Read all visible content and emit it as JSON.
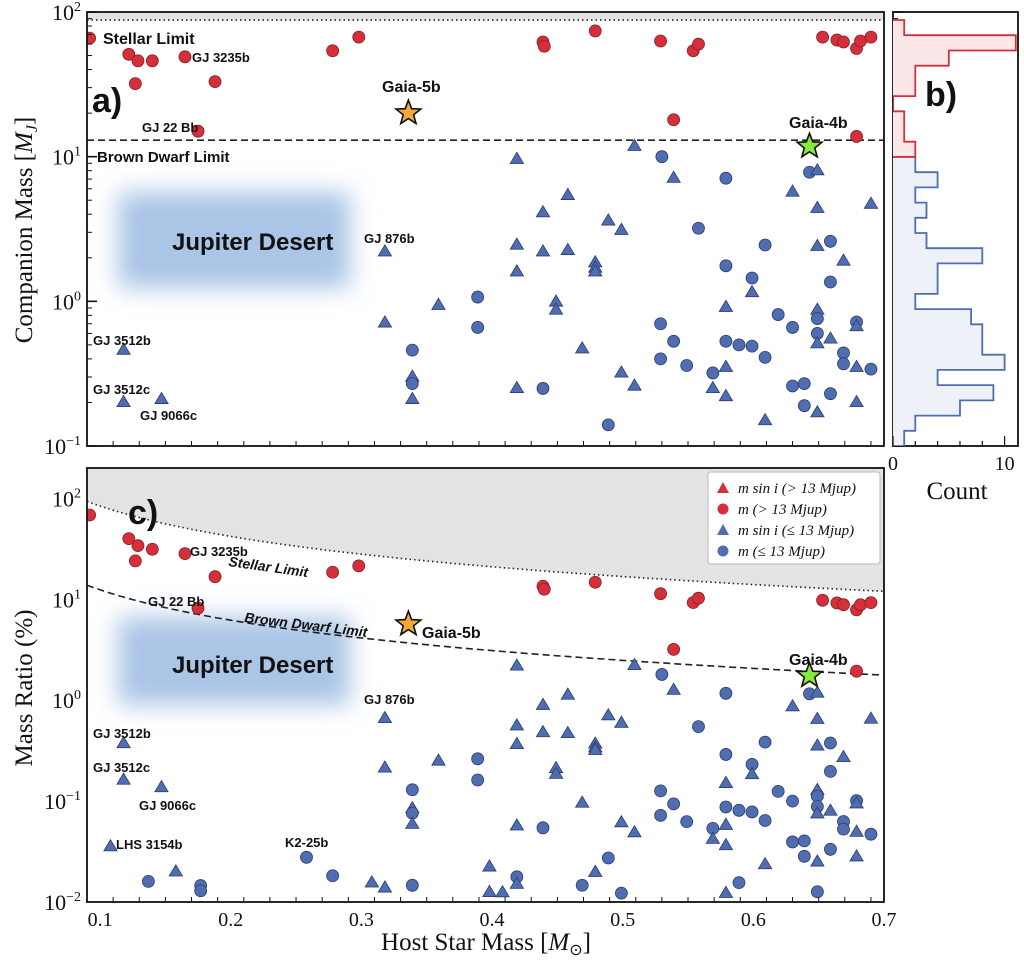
{
  "chart_data": [
    {
      "panel": "a)",
      "type": "scatter",
      "xlabel": "Host Star Mass [M☉]",
      "ylabel": "Companion Mass [MJ]",
      "xlim": [
        0.09,
        0.7
      ],
      "ylim": [
        0.1,
        100
      ],
      "yscale": "log",
      "x_ticks": [
        "0.1",
        "0.2",
        "0.3",
        "0.4",
        "0.5",
        "0.6",
        "0.7"
      ],
      "y_ticks": [
        "10^-1",
        "10^0",
        "10^1",
        "10^2"
      ],
      "limits": [
        {
          "label": "Stellar Limit",
          "mass": 88,
          "style": "dotted"
        },
        {
          "label": "Brown Dwarf Limit",
          "mass": 13,
          "style": "dashed"
        }
      ],
      "region_label": "Jupiter Desert",
      "annotations": [
        "Stellar Limit",
        "GJ 3235b",
        "Gaia-5b",
        "GJ 22 Bb",
        "Brown Dwarf Limit",
        "Gaia-4b",
        "Jupiter Desert",
        "GJ 876b",
        "GJ 3512b",
        "GJ 3512c",
        "GJ 9066c"
      ]
    },
    {
      "panel": "b)",
      "type": "histogram",
      "xlabel": "Count",
      "x_ticks": [
        "0",
        "10"
      ],
      "xlim": [
        0,
        11.2
      ],
      "mass_range": [
        0.1,
        88
      ],
      "counts_low_mass": [
        1,
        2,
        6,
        9,
        4,
        10,
        8,
        8,
        7,
        2,
        4,
        4,
        8,
        3,
        2,
        3,
        2,
        4,
        2
      ],
      "counts_high_mass": [
        2,
        1,
        1,
        0,
        2,
        2,
        5,
        11,
        1
      ]
    },
    {
      "panel": "c)",
      "type": "scatter",
      "xlabel": "Host Star Mass [M☉]",
      "ylabel": "Mass Ratio (%)",
      "xlim": [
        0.09,
        0.7
      ],
      "ylim": [
        0.01,
        200
      ],
      "yscale": "log",
      "x_ticks": [
        "0.1",
        "0.2",
        "0.3",
        "0.4",
        "0.5",
        "0.6",
        "0.7"
      ],
      "y_ticks": [
        "10^-2",
        "10^-1",
        "10^0",
        "10^1",
        "10^2"
      ],
      "annotations": [
        "Stellar Limit",
        "GJ 3235b",
        "GJ 22 Bb",
        "Brown Dwarf Limit",
        "Gaia-5b",
        "Jupiter Desert",
        "Gaia-4b",
        "GJ 876b",
        "GJ 3512b",
        "GJ 3512c",
        "GJ 9066c",
        "LHS 3154b",
        "K2-25b"
      ]
    }
  ],
  "legend": {
    "placement": "top-right",
    "entries": [
      {
        "symbol": "triangle",
        "color": "#d3303c",
        "label": "m sin i (> 13 Mjup)"
      },
      {
        "symbol": "circle",
        "color": "#d3303c",
        "label": "m (> 13 Mjup)"
      },
      {
        "symbol": "triangle",
        "color": "#4f6db0",
        "label": "m sin i (≤ 13 Mjup)"
      },
      {
        "symbol": "circle",
        "color": "#4f6db0",
        "label": "m (≤ 13 Mjup)"
      }
    ]
  },
  "colors": {
    "high_mass": "#d3303c",
    "low_mass": "#4f6db0",
    "gaia5b": "#f5a83a",
    "gaia4b": "#84ea3c",
    "desert": "#aac5e6"
  },
  "highlights": [
    {
      "name": "Gaia-5b",
      "host_mass": 0.336,
      "mass": 20
    },
    {
      "name": "Gaia-4b",
      "host_mass": 0.643,
      "mass": 11.8
    }
  ],
  "points_note_columns": [
    "host_mass_Msun",
    "companion_mass_MJ",
    "measurement"
  ],
  "points": [
    [
      0.092,
      66,
      "m"
    ],
    [
      0.122,
      51,
      "m"
    ],
    [
      0.129,
      46,
      "m"
    ],
    [
      0.14,
      46,
      "m"
    ],
    [
      0.127,
      32,
      "m"
    ],
    [
      0.165,
      49,
      "m"
    ],
    [
      0.188,
      33,
      "m"
    ],
    [
      0.175,
      15,
      "m"
    ],
    [
      0.278,
      54,
      "m"
    ],
    [
      0.298,
      67,
      "m"
    ],
    [
      0.439,
      62,
      "m"
    ],
    [
      0.44,
      58,
      "m"
    ],
    [
      0.479,
      74,
      "m"
    ],
    [
      0.529,
      63,
      "m"
    ],
    [
      0.554,
      54,
      "m"
    ],
    [
      0.558,
      60,
      "m"
    ],
    [
      0.539,
      18,
      "m"
    ],
    [
      0.653,
      67,
      "m"
    ],
    [
      0.664,
      64,
      "m"
    ],
    [
      0.669,
      62,
      "m"
    ],
    [
      0.679,
      56,
      "m"
    ],
    [
      0.682,
      63,
      "m"
    ],
    [
      0.69,
      67,
      "m"
    ],
    [
      0.679,
      13.8,
      "m"
    ],
    [
      0.318,
      2.2,
      "msini"
    ],
    [
      0.318,
      0.71,
      "msini"
    ],
    [
      0.359,
      0.94,
      "msini"
    ],
    [
      0.389,
      1.07,
      "m"
    ],
    [
      0.389,
      0.66,
      "m"
    ],
    [
      0.339,
      0.46,
      "m"
    ],
    [
      0.339,
      0.3,
      "msini"
    ],
    [
      0.339,
      0.27,
      "m"
    ],
    [
      0.339,
      0.21,
      "msini"
    ],
    [
      0.118,
      0.46,
      "msini"
    ],
    [
      0.118,
      0.2,
      "msini"
    ],
    [
      0.147,
      0.21,
      "msini"
    ],
    [
      0.419,
      9.6,
      "msini"
    ],
    [
      0.509,
      11.8,
      "msini"
    ],
    [
      0.53,
      10,
      "m"
    ],
    [
      0.539,
      7.1,
      "msini"
    ],
    [
      0.579,
      7.1,
      "m"
    ],
    [
      0.643,
      7.8,
      "m"
    ],
    [
      0.649,
      8,
      "msini"
    ],
    [
      0.63,
      5.7,
      "msini"
    ],
    [
      0.649,
      4.4,
      "msini"
    ],
    [
      0.69,
      4.7,
      "msini"
    ],
    [
      0.458,
      5.4,
      "msini"
    ],
    [
      0.439,
      4.1,
      "msini"
    ],
    [
      0.489,
      3.6,
      "msini"
    ],
    [
      0.499,
      3.1,
      "msini"
    ],
    [
      0.558,
      3.2,
      "m"
    ],
    [
      0.609,
      2.45,
      "m"
    ],
    [
      0.649,
      2.4,
      "msini"
    ],
    [
      0.659,
      2.6,
      "m"
    ],
    [
      0.669,
      1.9,
      "msini"
    ],
    [
      0.419,
      2.45,
      "msini"
    ],
    [
      0.419,
      1.6,
      "msini"
    ],
    [
      0.439,
      2.2,
      "msini"
    ],
    [
      0.458,
      2.25,
      "msini"
    ],
    [
      0.479,
      1.85,
      "msini"
    ],
    [
      0.479,
      1.7,
      "msini"
    ],
    [
      0.479,
      1.6,
      "msini"
    ],
    [
      0.579,
      1.76,
      "m"
    ],
    [
      0.599,
      1.45,
      "m"
    ],
    [
      0.599,
      1.15,
      "msini"
    ],
    [
      0.659,
      1.36,
      "m"
    ],
    [
      0.449,
      0.99,
      "msini"
    ],
    [
      0.449,
      0.87,
      "msini"
    ],
    [
      0.579,
      0.91,
      "msini"
    ],
    [
      0.619,
      0.81,
      "m"
    ],
    [
      0.63,
      0.66,
      "m"
    ],
    [
      0.649,
      0.87,
      "msini"
    ],
    [
      0.649,
      0.76,
      "m"
    ],
    [
      0.649,
      0.6,
      "m"
    ],
    [
      0.649,
      0.51,
      "msini"
    ],
    [
      0.679,
      0.72,
      "m"
    ],
    [
      0.679,
      0.67,
      "msini"
    ],
    [
      0.659,
      0.55,
      "msini"
    ],
    [
      0.529,
      0.7,
      "m"
    ],
    [
      0.539,
      0.53,
      "m"
    ],
    [
      0.469,
      0.47,
      "msini"
    ],
    [
      0.579,
      0.53,
      "m"
    ],
    [
      0.589,
      0.5,
      "m"
    ],
    [
      0.599,
      0.49,
      "m"
    ],
    [
      0.609,
      0.41,
      "m"
    ],
    [
      0.529,
      0.4,
      "m"
    ],
    [
      0.549,
      0.36,
      "m"
    ],
    [
      0.569,
      0.32,
      "m"
    ],
    [
      0.579,
      0.35,
      "msini"
    ],
    [
      0.669,
      0.44,
      "m"
    ],
    [
      0.669,
      0.37,
      "m"
    ],
    [
      0.679,
      0.35,
      "msini"
    ],
    [
      0.69,
      0.34,
      "m"
    ],
    [
      0.499,
      0.32,
      "msini"
    ],
    [
      0.509,
      0.26,
      "msini"
    ],
    [
      0.419,
      0.25,
      "msini"
    ],
    [
      0.439,
      0.25,
      "m"
    ],
    [
      0.569,
      0.25,
      "msini"
    ],
    [
      0.579,
      0.22,
      "msini"
    ],
    [
      0.63,
      0.26,
      "m"
    ],
    [
      0.639,
      0.27,
      "m"
    ],
    [
      0.659,
      0.23,
      "m"
    ],
    [
      0.639,
      0.19,
      "m"
    ],
    [
      0.649,
      0.17,
      "msini"
    ],
    [
      0.679,
      0.2,
      "msini"
    ],
    [
      0.489,
      0.14,
      "m"
    ],
    [
      0.609,
      0.15,
      "msini"
    ],
    [
      0.108,
      0.04,
      "msini"
    ],
    [
      0.258,
      0.075,
      "m"
    ],
    [
      0.137,
      0.023,
      "m"
    ],
    [
      0.158,
      0.033,
      "msini"
    ],
    [
      0.177,
      0.027,
      "m"
    ],
    [
      0.177,
      0.024,
      "m"
    ],
    [
      0.278,
      0.053,
      "m"
    ],
    [
      0.308,
      0.05,
      "msini"
    ],
    [
      0.318,
      0.046,
      "msini"
    ],
    [
      0.339,
      0.052,
      "m"
    ],
    [
      0.398,
      0.093,
      "msini"
    ],
    [
      0.398,
      0.052,
      "msini"
    ],
    [
      0.408,
      0.053,
      "msini"
    ],
    [
      0.419,
      0.078,
      "m"
    ],
    [
      0.419,
      0.066,
      "msini"
    ],
    [
      0.469,
      0.072,
      "m"
    ],
    [
      0.479,
      0.099,
      "msini"
    ],
    [
      0.499,
      0.064,
      "m"
    ],
    [
      0.579,
      0.074,
      "msini"
    ],
    [
      0.589,
      0.096,
      "m"
    ],
    [
      0.649,
      0.086,
      "m"
    ]
  ]
}
